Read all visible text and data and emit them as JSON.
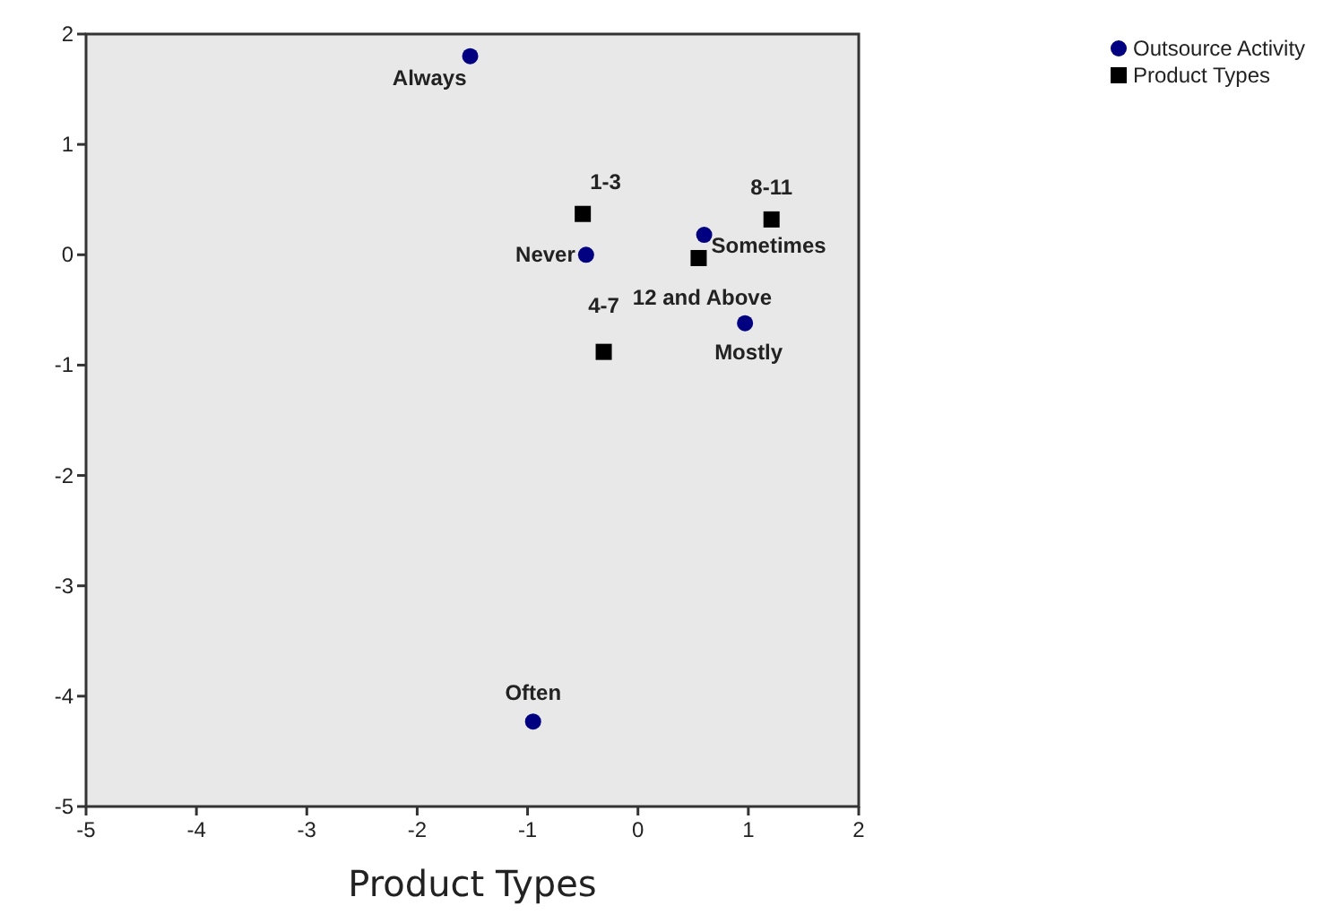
{
  "chart_data": {
    "type": "scatter",
    "xlabel": "Product Types",
    "xlim": [
      -5,
      2
    ],
    "xticks": [
      -5,
      -4,
      -3,
      -2,
      -1,
      0,
      1,
      2
    ],
    "ylim": [
      -5,
      2
    ],
    "yticks": [
      -5,
      -4,
      -3,
      -2,
      -1,
      0,
      1,
      2
    ],
    "grid": false,
    "legend": "top right",
    "series": [
      {
        "name": "Outsource Activity",
        "color": "#000080",
        "marker": "circle",
        "x": [
          -1.52,
          -0.47,
          0.6,
          0.97,
          -0.95
        ],
        "values": [
          1.8,
          0,
          0.18,
          -0.62,
          -4.23
        ]
      },
      {
        "name": "Product Types",
        "color": "#000000",
        "marker": "square",
        "x": [
          -0.5,
          1.21,
          0.55,
          -0.31
        ],
        "values": [
          0.37,
          0.32,
          -0.03,
          -0.88
        ]
      }
    ],
    "annotations": [
      {
        "text": "Always",
        "x": -1.52,
        "y": 1.8
      },
      {
        "text": "Never",
        "x": -0.47,
        "y": 0
      },
      {
        "text": "Sometimes",
        "x": 0.6,
        "y": 0.18
      },
      {
        "text": "Mostly",
        "x": 0.97,
        "y": -0.62
      },
      {
        "text": "Often",
        "x": -0.95,
        "y": -4.23
      },
      {
        "text": "1-3",
        "x": -0.5,
        "y": 0.37
      },
      {
        "text": "8-11",
        "x": 1.21,
        "y": 0.32
      },
      {
        "text": "12 and Above",
        "x": 0.55,
        "y": -0.03
      },
      {
        "text": "4-7",
        "x": -0.31,
        "y": -0.88
      }
    ]
  }
}
